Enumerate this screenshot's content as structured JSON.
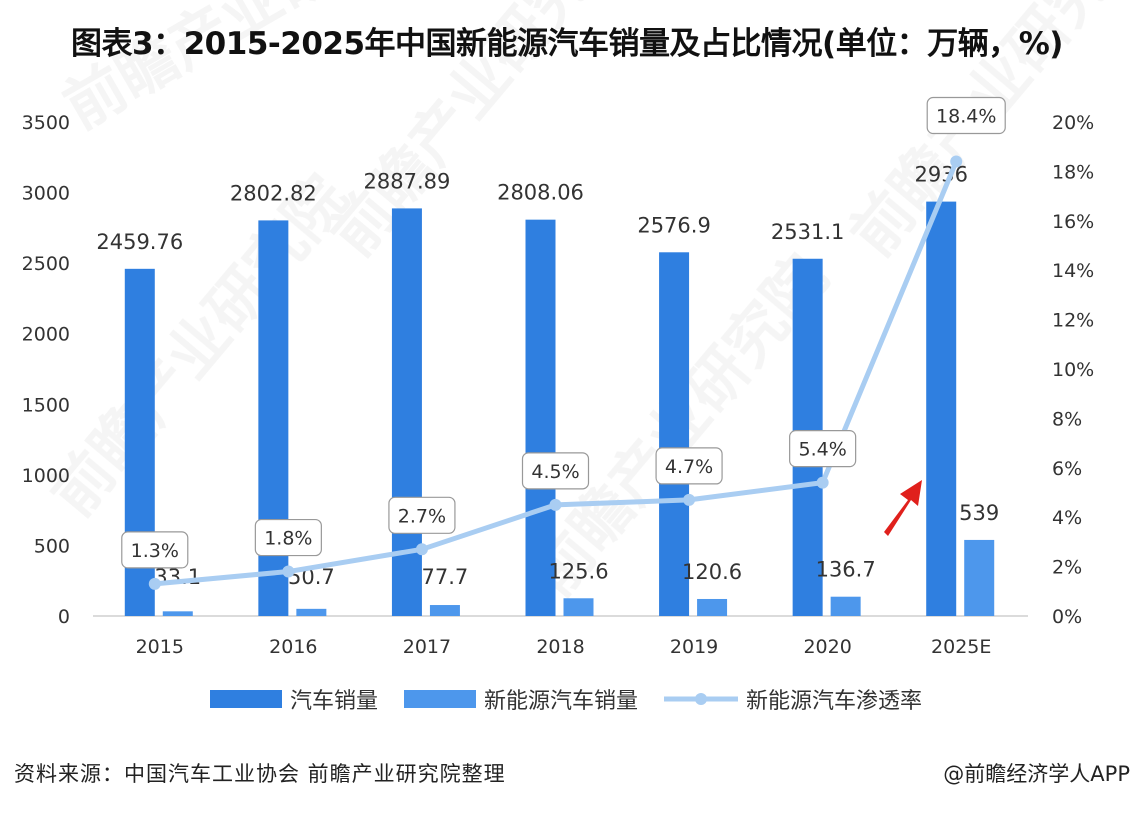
{
  "title": "图表3：2015-2025年中国新能源汽车销量及占比情况(单位：万辆，%)",
  "source": "资料来源：中国汽车工业协会 前瞻产业研究院整理",
  "credit": "@前瞻经济学人APP",
  "watermark": "前瞻产业研究院",
  "colors": {
    "car_sales": "#2f7fe0",
    "nev_sales": "#4d97ec",
    "penetration": "#a9cdf2",
    "arrow": "#e0201c"
  },
  "chart_data": {
    "type": "bar+line",
    "title": "图表3：2015-2025年中国新能源汽车销量及占比情况(单位：万辆，%)",
    "categories": [
      "2015",
      "2016",
      "2017",
      "2018",
      "2019",
      "2020",
      "2025E"
    ],
    "series": [
      {
        "name": "汽车销量",
        "type": "bar",
        "axis": "left",
        "values": [
          2459.76,
          2802.82,
          2887.89,
          2808.06,
          2576.9,
          2531.1,
          2936
        ],
        "labels": [
          "2459.76",
          "2802.82",
          "2887.89",
          "2808.06",
          "2576.9",
          "2531.1",
          "2936"
        ]
      },
      {
        "name": "新能源汽车销量",
        "type": "bar",
        "axis": "left",
        "values": [
          33.1,
          50.7,
          77.7,
          125.6,
          120.6,
          136.7,
          539
        ],
        "labels": [
          "33.1",
          "50.7",
          "77.7",
          "125.6",
          "120.6",
          "136.7",
          "539"
        ]
      },
      {
        "name": "新能源汽车渗透率",
        "type": "line",
        "axis": "right",
        "values": [
          1.3,
          1.8,
          2.7,
          4.5,
          4.7,
          5.4,
          18.4
        ],
        "labels": [
          "1.3%",
          "1.8%",
          "2.7%",
          "4.5%",
          "4.7%",
          "5.4%",
          "18.4%"
        ]
      }
    ],
    "y_left": {
      "range": [
        0,
        3500
      ],
      "ticks": [
        "0",
        "500",
        "1000",
        "1500",
        "2000",
        "2500",
        "3000",
        "3500"
      ]
    },
    "y_right": {
      "range": [
        0,
        20
      ],
      "ticks": [
        "0%",
        "2%",
        "4%",
        "6%",
        "8%",
        "10%",
        "12%",
        "14%",
        "16%",
        "18%",
        "20%"
      ]
    },
    "grid": false,
    "legend": "bottom",
    "annotation": "red upward arrow before 2025E"
  }
}
